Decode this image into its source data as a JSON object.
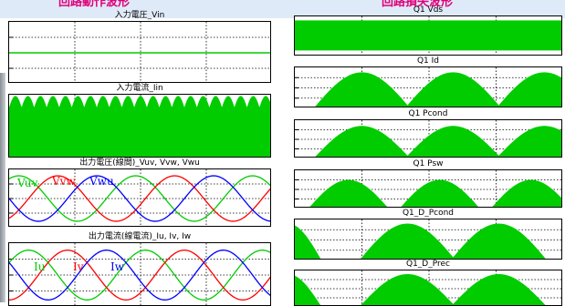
{
  "section_titles": {
    "left": "回路動作波形",
    "right": "回路損失波形"
  },
  "plot_titles": {
    "vin": "入力電圧_Vin",
    "iin": "入力電流_Iin",
    "vout": "出力電圧(線間)_Vuv, Vvw, Vwu",
    "iout": "出力電流(線電流)_Iu, Iv, Iw",
    "vds": "Q1 Vds",
    "id": "Q1 Id",
    "pcond": "Q1 Pcond",
    "psw": "Q1 Psw",
    "d_pcond": "Q1_D_Pcond",
    "d_prec": "Q1_D_Prec"
  },
  "wave_labels": {
    "vuv": "Vuv",
    "vvw": "Vvw",
    "vwu": "Vwu",
    "iu": "Iu",
    "iv": "Iv",
    "iw": "Iw"
  },
  "colors": {
    "green": "#00cc00",
    "red": "#ff0000",
    "blue": "#0000ff",
    "section_title": "#e0007a",
    "grid": "#000000",
    "background_band": "#dfeaf8"
  },
  "chart_data": [
    {
      "id": "vin",
      "type": "line",
      "title": "入力電圧_Vin",
      "series": [
        {
          "color": "#00cc00",
          "shape": "constant",
          "level": 0.0
        }
      ],
      "ylim": [
        -1,
        1
      ],
      "grid": true
    },
    {
      "id": "iin",
      "type": "area",
      "title": "入力電流_Iin",
      "series": [
        {
          "color": "#00cc00",
          "shape": "six-pulse rectified ripple",
          "ripple_periods": 21,
          "min_level": 0.65,
          "max_level": 0.98
        }
      ],
      "ylim": [
        0,
        1
      ],
      "grid": true
    },
    {
      "id": "vout",
      "type": "line",
      "title": "出力電圧(線間)_Vuv, Vvw, Vwu",
      "cycles": 2.25,
      "series": [
        {
          "name": "Vuv",
          "color": "#00cc00",
          "phase_deg": 60
        },
        {
          "name": "Vvw",
          "color": "#ff0000",
          "phase_deg": -60
        },
        {
          "name": "Vwu",
          "color": "#0000ff",
          "phase_deg": 180
        }
      ],
      "ylim": [
        -1,
        1
      ],
      "grid": true
    },
    {
      "id": "iout",
      "type": "line",
      "title": "出力電流(線電流)_Iu, Iv, Iw",
      "cycles": 2.25,
      "series": [
        {
          "name": "Iu",
          "color": "#00cc00",
          "phase_deg": 30
        },
        {
          "name": "Iv",
          "color": "#ff0000",
          "phase_deg": -90
        },
        {
          "name": "Iw",
          "color": "#0000ff",
          "phase_deg": 150
        }
      ],
      "ylim": [
        -1,
        1
      ],
      "grid": true
    },
    {
      "id": "vds",
      "type": "area",
      "title": "Q1 Vds",
      "series": [
        {
          "color": "#00cc00",
          "shape": "PWM band",
          "band": [
            0.15,
            0.9
          ]
        }
      ],
      "ylim": [
        0,
        1
      ],
      "grid": true
    },
    {
      "id": "id",
      "type": "area",
      "title": "Q1 Id",
      "series": [
        {
          "color": "#00cc00",
          "shape": "half-sine bursts",
          "bursts": [
            [
              0.07,
              0.43
            ],
            [
              0.41,
              0.77
            ],
            [
              0.75,
              1.11
            ]
          ],
          "peak": 0.88
        }
      ],
      "ylim": [
        0,
        1
      ],
      "grid": true
    },
    {
      "id": "pcond",
      "type": "area",
      "title": "Q1 Pcond",
      "series": [
        {
          "color": "#00cc00",
          "shape": "half-sine bursts",
          "bursts": [
            [
              0.07,
              0.43
            ],
            [
              0.41,
              0.77
            ],
            [
              0.75,
              1.11
            ]
          ],
          "peak": 0.85
        }
      ],
      "ylim": [
        0,
        1
      ],
      "grid": true
    },
    {
      "id": "psw",
      "type": "area",
      "title": "Q1 Psw",
      "series": [
        {
          "color": "#00cc00",
          "shape": "half-sine bursts",
          "bursts": [
            [
              0.05,
              0.35
            ],
            [
              0.39,
              0.69
            ],
            [
              0.73,
              1.03
            ]
          ],
          "peak": 0.75
        }
      ],
      "ylim": [
        0,
        1
      ],
      "grid": true
    },
    {
      "id": "d_pcond",
      "type": "area",
      "title": "Q1_D_Pcond",
      "series": [
        {
          "color": "#00cc00",
          "shape": "half-sine bursts",
          "bursts": [
            [
              -0.15,
              0.1
            ],
            [
              0.24,
              0.6
            ],
            [
              0.58,
              0.94
            ]
          ],
          "peak": 0.9
        }
      ],
      "ylim": [
        0,
        1
      ],
      "grid": true
    },
    {
      "id": "d_prec",
      "type": "area",
      "title": "Q1_D_Prec",
      "series": [
        {
          "color": "#00cc00",
          "shape": "half-sine bursts",
          "bursts": [
            [
              -0.15,
              0.1
            ],
            [
              0.24,
              0.6
            ],
            [
              0.58,
              0.94
            ]
          ],
          "peak": 0.9
        }
      ],
      "ylim": [
        0,
        1
      ],
      "grid": true
    }
  ]
}
